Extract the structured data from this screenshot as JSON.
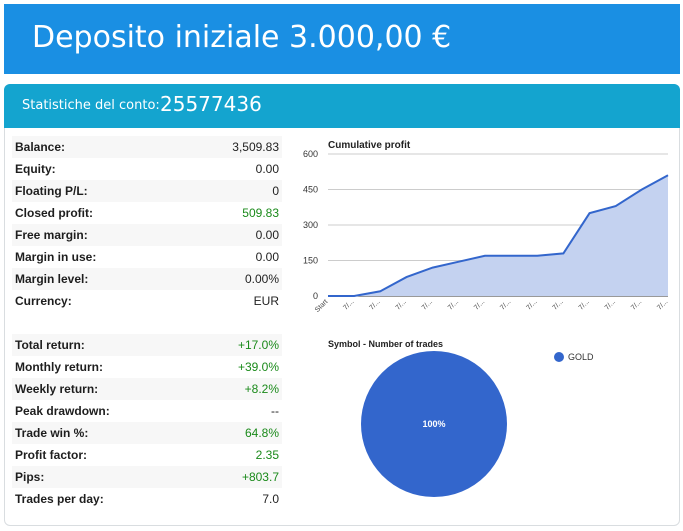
{
  "banner": {
    "title": "Deposito iniziale 3.000,00 €"
  },
  "account": {
    "label": "Statistiche del conto:",
    "number": "25577436"
  },
  "stats_top": [
    {
      "label": "Balance:",
      "value": "3,509.83",
      "positive": false
    },
    {
      "label": "Equity:",
      "value": "0.00",
      "positive": false
    },
    {
      "label": "Floating P/L:",
      "value": "0",
      "positive": false
    },
    {
      "label": "Closed profit:",
      "value": "509.83",
      "positive": true
    },
    {
      "label": "Free margin:",
      "value": "0.00",
      "positive": false
    },
    {
      "label": "Margin in use:",
      "value": "0.00",
      "positive": false
    },
    {
      "label": "Margin level:",
      "value": "0.00%",
      "positive": false
    },
    {
      "label": "Currency:",
      "value": "EUR",
      "positive": false
    }
  ],
  "stats_bottom": [
    {
      "label": "Total return:",
      "value": "+17.0%",
      "positive": true
    },
    {
      "label": "Monthly return:",
      "value": "+39.0%",
      "positive": true
    },
    {
      "label": "Weekly return:",
      "value": "+8.2%",
      "positive": true
    },
    {
      "label": "Peak drawdown:",
      "value": "--",
      "positive": false
    },
    {
      "label": "Trade win %:",
      "value": "64.8%",
      "positive": true
    },
    {
      "label": "Profit factor:",
      "value": "2.35",
      "positive": true
    },
    {
      "label": "Pips:",
      "value": "+803.7",
      "positive": true
    },
    {
      "label": "Trades per day:",
      "value": "7.0",
      "positive": false
    }
  ],
  "chart_data": [
    {
      "type": "area",
      "title": "Cumulative profit",
      "x": [
        "Start",
        "7/...",
        "7/...",
        "7/...",
        "7/...",
        "7/...",
        "7/...",
        "7/...",
        "7/...",
        "7/...",
        "7/...",
        "7/...",
        "7/...",
        "7/..."
      ],
      "series": [
        {
          "values": [
            0,
            0,
            20,
            80,
            120,
            145,
            170,
            170,
            170,
            180,
            350,
            380,
            450,
            510
          ]
        }
      ],
      "yticks": [
        0,
        150,
        300,
        450,
        600
      ],
      "ylim": [
        0,
        600
      ],
      "grid": true,
      "color": "#3366cc",
      "fill": "#c4d2f0"
    },
    {
      "type": "pie",
      "title": "Symbol - Number of trades",
      "slices": [
        {
          "label": "GOLD",
          "value": 100,
          "pct_label": "100%",
          "color": "#3366cc"
        }
      ],
      "legend": "top-right"
    }
  ]
}
